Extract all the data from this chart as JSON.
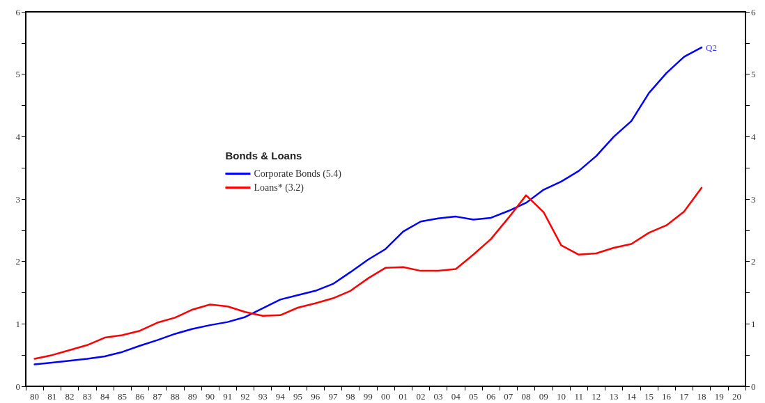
{
  "chart_data": {
    "type": "line",
    "legend_title": "Bonds & Loans",
    "legend": "center",
    "grid": false,
    "marker": "none",
    "line_style": "solid",
    "categories": [
      "80",
      "81",
      "82",
      "83",
      "84",
      "85",
      "86",
      "87",
      "88",
      "89",
      "90",
      "91",
      "92",
      "93",
      "94",
      "95",
      "96",
      "97",
      "98",
      "99",
      "00",
      "01",
      "02",
      "03",
      "04",
      "05",
      "06",
      "07",
      "08",
      "09",
      "10",
      "11",
      "12",
      "13",
      "14",
      "15",
      "16",
      "17",
      "18",
      "19",
      "20"
    ],
    "ylim": [
      0,
      6
    ],
    "yticks": [
      0,
      {
        "value": 0.5,
        "label": null
      },
      1,
      {
        "value": 1.5,
        "label": null
      },
      2,
      {
        "value": 2.5,
        "label": null
      },
      3,
      {
        "value": 3.5,
        "label": null
      },
      4,
      {
        "value": 4.5,
        "label": null
      },
      5,
      {
        "value": 5.5,
        "label": null
      },
      6
    ],
    "y2lim": [
      0,
      6
    ],
    "y2ticks": [
      0,
      {
        "value": 0.5,
        "label": null
      },
      1,
      {
        "value": 1.5,
        "label": null
      },
      2,
      {
        "value": 2.5,
        "label": null
      },
      3,
      {
        "value": 3.5,
        "label": null
      },
      4,
      {
        "value": 4.5,
        "label": null
      },
      5,
      {
        "value": 5.5,
        "label": null
      },
      6
    ],
    "annotations": [
      {
        "text": "Q2",
        "x": "18",
        "y": 5.43
      }
    ],
    "series": [
      {
        "name": "Corporate Bonds (5.4)",
        "color": "#0000ff",
        "values": [
          0.35,
          0.38,
          0.41,
          0.44,
          0.48,
          0.55,
          0.65,
          0.74,
          0.84,
          0.92,
          0.98,
          1.03,
          1.11,
          1.25,
          1.39,
          1.46,
          1.53,
          1.64,
          1.83,
          2.03,
          2.2,
          2.48,
          2.64,
          2.69,
          2.72,
          2.67,
          2.7,
          2.81,
          2.94,
          3.15,
          3.28,
          3.45,
          3.69,
          4.0,
          4.25,
          4.7,
          5.02,
          5.28,
          5.43,
          null,
          null
        ]
      },
      {
        "name": "Loans* (3.2)",
        "color": "#ff0000",
        "values": [
          0.44,
          0.5,
          0.58,
          0.66,
          0.78,
          0.82,
          0.89,
          1.02,
          1.1,
          1.23,
          1.31,
          1.28,
          1.19,
          1.13,
          1.14,
          1.26,
          1.33,
          1.41,
          1.53,
          1.73,
          1.9,
          1.91,
          1.85,
          1.85,
          1.88,
          2.11,
          2.36,
          2.7,
          3.06,
          2.79,
          2.26,
          2.11,
          2.13,
          2.22,
          2.28,
          2.46,
          2.58,
          2.8,
          3.18,
          null,
          null
        ]
      }
    ]
  }
}
